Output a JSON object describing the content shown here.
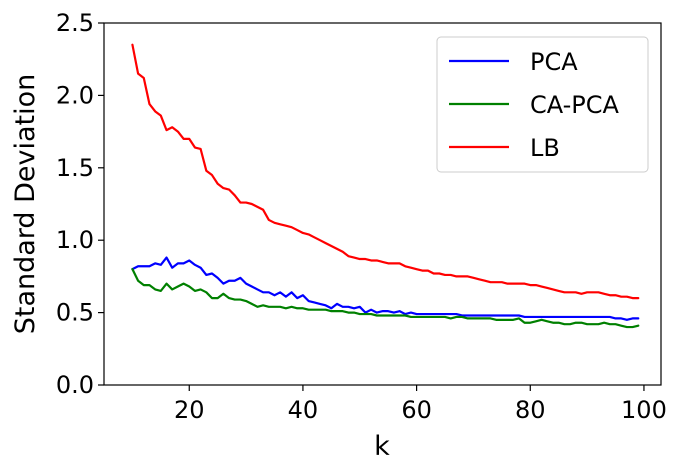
{
  "chart_data": {
    "type": "line",
    "xlabel": "k",
    "ylabel": "Standard Deviation",
    "xlim": [
      5,
      103
    ],
    "ylim": [
      0,
      2.5
    ],
    "xticks": [
      20,
      40,
      60,
      80,
      100
    ],
    "yticks": [
      0.0,
      0.5,
      1.0,
      1.5,
      2.0,
      2.5
    ],
    "xtick_labels": [
      "20",
      "40",
      "60",
      "80",
      "100"
    ],
    "ytick_labels": [
      "0.0",
      "0.5",
      "1.0",
      "1.5",
      "2.0",
      "2.5"
    ],
    "legend_position": "top-right",
    "grid": false,
    "x": [
      10,
      11,
      12,
      13,
      14,
      15,
      16,
      17,
      18,
      19,
      20,
      21,
      22,
      23,
      24,
      25,
      26,
      27,
      28,
      29,
      30,
      31,
      32,
      33,
      34,
      35,
      36,
      37,
      38,
      39,
      40,
      41,
      42,
      43,
      44,
      45,
      46,
      47,
      48,
      49,
      50,
      51,
      52,
      53,
      54,
      55,
      56,
      57,
      58,
      59,
      60,
      61,
      62,
      63,
      64,
      65,
      66,
      67,
      68,
      69,
      70,
      71,
      72,
      73,
      74,
      75,
      76,
      77,
      78,
      79,
      80,
      81,
      82,
      83,
      84,
      85,
      86,
      87,
      88,
      89,
      90,
      91,
      92,
      93,
      94,
      95,
      96,
      97,
      98,
      99
    ],
    "series": [
      {
        "name": "PCA",
        "color": "#0000ff",
        "values": [
          0.8,
          0.82,
          0.82,
          0.82,
          0.84,
          0.83,
          0.88,
          0.81,
          0.84,
          0.84,
          0.86,
          0.83,
          0.81,
          0.76,
          0.77,
          0.74,
          0.7,
          0.72,
          0.72,
          0.74,
          0.7,
          0.68,
          0.66,
          0.64,
          0.64,
          0.62,
          0.64,
          0.61,
          0.64,
          0.6,
          0.62,
          0.58,
          0.57,
          0.56,
          0.55,
          0.53,
          0.56,
          0.54,
          0.54,
          0.53,
          0.54,
          0.5,
          0.52,
          0.5,
          0.51,
          0.51,
          0.5,
          0.51,
          0.49,
          0.5,
          0.49,
          0.49,
          0.49,
          0.49,
          0.49,
          0.49,
          0.49,
          0.49,
          0.48,
          0.48,
          0.48,
          0.48,
          0.48,
          0.48,
          0.48,
          0.48,
          0.48,
          0.48,
          0.48,
          0.47,
          0.47,
          0.47,
          0.47,
          0.47,
          0.47,
          0.47,
          0.47,
          0.47,
          0.47,
          0.47,
          0.47,
          0.47,
          0.47,
          0.47,
          0.47,
          0.46,
          0.46,
          0.45,
          0.46,
          0.46
        ]
      },
      {
        "name": "CA-PCA",
        "color": "#008000",
        "values": [
          0.8,
          0.72,
          0.69,
          0.69,
          0.66,
          0.65,
          0.7,
          0.66,
          0.68,
          0.7,
          0.68,
          0.65,
          0.66,
          0.64,
          0.6,
          0.6,
          0.63,
          0.6,
          0.59,
          0.59,
          0.58,
          0.56,
          0.54,
          0.55,
          0.54,
          0.54,
          0.54,
          0.53,
          0.54,
          0.53,
          0.53,
          0.52,
          0.52,
          0.52,
          0.52,
          0.51,
          0.51,
          0.51,
          0.5,
          0.5,
          0.49,
          0.49,
          0.49,
          0.48,
          0.48,
          0.48,
          0.48,
          0.48,
          0.48,
          0.47,
          0.47,
          0.47,
          0.47,
          0.47,
          0.47,
          0.47,
          0.46,
          0.47,
          0.47,
          0.46,
          0.46,
          0.46,
          0.46,
          0.46,
          0.45,
          0.45,
          0.45,
          0.45,
          0.46,
          0.43,
          0.43,
          0.44,
          0.45,
          0.44,
          0.43,
          0.43,
          0.42,
          0.42,
          0.43,
          0.43,
          0.42,
          0.42,
          0.42,
          0.43,
          0.42,
          0.42,
          0.41,
          0.4,
          0.4,
          0.41
        ]
      },
      {
        "name": "LB",
        "color": "#ff0000",
        "values": [
          2.35,
          2.15,
          2.12,
          1.94,
          1.89,
          1.86,
          1.76,
          1.78,
          1.75,
          1.7,
          1.7,
          1.64,
          1.63,
          1.48,
          1.45,
          1.39,
          1.36,
          1.35,
          1.31,
          1.26,
          1.26,
          1.25,
          1.23,
          1.21,
          1.14,
          1.12,
          1.11,
          1.1,
          1.09,
          1.07,
          1.05,
          1.04,
          1.02,
          1.0,
          0.98,
          0.96,
          0.94,
          0.92,
          0.89,
          0.88,
          0.87,
          0.87,
          0.86,
          0.86,
          0.85,
          0.84,
          0.84,
          0.84,
          0.82,
          0.81,
          0.8,
          0.79,
          0.79,
          0.77,
          0.77,
          0.76,
          0.76,
          0.75,
          0.75,
          0.75,
          0.74,
          0.73,
          0.72,
          0.71,
          0.71,
          0.71,
          0.7,
          0.7,
          0.7,
          0.7,
          0.69,
          0.69,
          0.68,
          0.67,
          0.66,
          0.65,
          0.64,
          0.64,
          0.64,
          0.63,
          0.64,
          0.64,
          0.64,
          0.63,
          0.62,
          0.62,
          0.61,
          0.61,
          0.6,
          0.6
        ]
      }
    ]
  }
}
